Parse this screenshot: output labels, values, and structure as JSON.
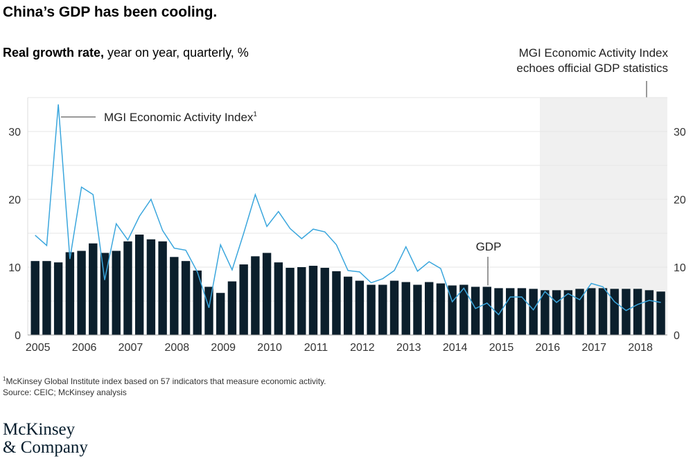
{
  "title": "China’s GDP has been cooling.",
  "subtitle": {
    "bold": "Real growth rate,",
    "rest": " year on year, quarterly, %"
  },
  "callout": {
    "line1": "MGI Economic Activity Index",
    "line2": "echoes official GDP statistics"
  },
  "footnote": {
    "marker": "1",
    "text": "McKinsey Global Institute index based on 57 indicators that measure economic activity.",
    "source": " Source: CEIC; McKinsey analysis"
  },
  "logo": {
    "line1": "McKinsey",
    "line2": "& Company"
  },
  "chart_data": {
    "type": "bar+line",
    "title": "China’s GDP has been cooling.",
    "ylabel": "Real growth rate, year on year, quarterly, %",
    "ylim": [
      0,
      35
    ],
    "yticks": [
      "0",
      "10",
      "20",
      "30"
    ],
    "grid": true,
    "xticks": [
      "2005",
      "2006",
      "2007",
      "2008",
      "2009",
      "2010",
      "2011",
      "2012",
      "2013",
      "2014",
      "2015",
      "2016",
      "2017",
      "2018"
    ],
    "x_start": "2005 Q1",
    "x_end": "2018 Q3",
    "highlight_region": {
      "from": "2016 Q1",
      "to": "2018 Q3",
      "color": "#f0f0f0"
    },
    "series": [
      {
        "name": "GDP",
        "kind": "bar",
        "color": "#0b1f2c",
        "values": [
          10.9,
          10.9,
          10.7,
          12.2,
          12.4,
          13.5,
          12.1,
          12.4,
          13.8,
          14.8,
          14.1,
          13.8,
          11.5,
          10.9,
          9.5,
          7.1,
          6.2,
          7.9,
          10.4,
          11.6,
          12.1,
          10.7,
          9.9,
          10.0,
          10.2,
          9.9,
          9.4,
          8.6,
          8.0,
          7.4,
          7.4,
          8.0,
          7.8,
          7.4,
          7.8,
          7.6,
          7.3,
          7.4,
          7.1,
          7.1,
          6.9,
          6.9,
          6.9,
          6.8,
          6.6,
          6.6,
          6.6,
          6.8,
          6.9,
          6.9,
          6.8,
          6.8,
          6.8,
          6.6,
          6.4
        ]
      },
      {
        "name": "MGI Economic Activity Index",
        "name_sup": "1",
        "kind": "line",
        "color": "#3aa6dd",
        "values": [
          14.7,
          13.2,
          34.0,
          11.2,
          21.8,
          20.7,
          8.1,
          16.4,
          14.0,
          17.5,
          20.0,
          15.4,
          12.8,
          12.5,
          9.3,
          4.0,
          13.3,
          9.6,
          15.0,
          20.7,
          16.0,
          18.2,
          15.7,
          14.2,
          15.6,
          15.2,
          13.3,
          9.5,
          9.3,
          7.7,
          8.3,
          9.5,
          13.0,
          9.4,
          10.8,
          9.8,
          4.9,
          6.9,
          3.9,
          4.7,
          3.0,
          5.6,
          5.6,
          3.7,
          6.4,
          4.8,
          6.1,
          5.2,
          7.6,
          7.1,
          4.9,
          3.6,
          4.5,
          5.1,
          4.8
        ]
      }
    ]
  }
}
